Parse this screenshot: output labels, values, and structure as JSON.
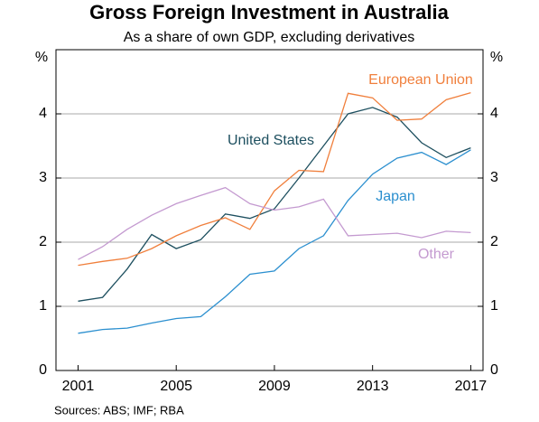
{
  "chart_data": {
    "type": "line",
    "title": "Gross Foreign Investment in Australia",
    "subtitle": "As a share of own GDP, excluding derivatives",
    "y_label": "%",
    "source": "Sources:   ABS; IMF; RBA",
    "x": [
      2001,
      2002,
      2003,
      2004,
      2005,
      2006,
      2007,
      2008,
      2009,
      2010,
      2011,
      2012,
      2013,
      2014,
      2015,
      2016,
      2017
    ],
    "xlim": [
      2000.1,
      2017.5
    ],
    "xticks": [
      2001,
      2005,
      2009,
      2013,
      2017
    ],
    "ylim": [
      0,
      5
    ],
    "yticks": [
      0,
      1,
      2,
      3,
      4
    ],
    "grid": true,
    "series": [
      {
        "name": "United States",
        "color": "#1d4f5f",
        "values": [
          1.08,
          1.14,
          1.58,
          2.12,
          1.9,
          2.04,
          2.44,
          2.37,
          2.52,
          3.0,
          3.5,
          4.0,
          4.1,
          3.95,
          3.55,
          3.32,
          3.47
        ]
      },
      {
        "name": "European Union",
        "color": "#f07f3c",
        "values": [
          1.64,
          1.7,
          1.75,
          1.9,
          2.1,
          2.26,
          2.38,
          2.2,
          2.8,
          3.12,
          3.1,
          4.32,
          4.25,
          3.9,
          3.92,
          4.22,
          4.33
        ]
      },
      {
        "name": "Japan",
        "color": "#2b8fcf",
        "values": [
          0.58,
          0.64,
          0.66,
          0.74,
          0.81,
          0.84,
          1.15,
          1.5,
          1.55,
          1.9,
          2.1,
          2.65,
          3.06,
          3.31,
          3.4,
          3.21,
          3.44
        ]
      },
      {
        "name": "Other",
        "color": "#c49ad0",
        "values": [
          1.73,
          1.93,
          2.2,
          2.42,
          2.6,
          2.73,
          2.85,
          2.6,
          2.5,
          2.55,
          2.67,
          2.1,
          2.12,
          2.14,
          2.07,
          2.17,
          2.15
        ]
      }
    ]
  }
}
